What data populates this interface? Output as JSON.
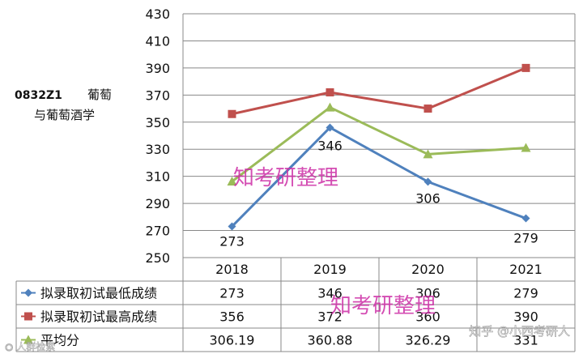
{
  "title": {
    "code": "0832Z1",
    "name_line1": "葡萄",
    "name_line2": "与葡萄酒学"
  },
  "watermarks": {
    "center": "知考研整理",
    "table": "知考研整理",
    "bottom_right": "知乎 @小西考研人",
    "bottom_left": "◉ 人群检索"
  },
  "colors": {
    "min": "#4f81bd",
    "max": "#c0504d",
    "avg": "#9bbb59",
    "watermark": "#cc2ea6",
    "grid": "#888888"
  },
  "chart_data": {
    "type": "line",
    "categories": [
      "2018",
      "2019",
      "2020",
      "2021"
    ],
    "ylim": [
      250,
      430
    ],
    "yticks": [
      "250",
      "270",
      "290",
      "310",
      "330",
      "350",
      "370",
      "390",
      "410",
      "430"
    ],
    "grid": true,
    "legend": "bottom-table",
    "series": [
      {
        "name": "拟录取初试最低成绩",
        "values": [
          273,
          346,
          306,
          279
        ],
        "labels": [
          "273",
          "346",
          "306",
          "279"
        ],
        "color": "#4f81bd",
        "marker": "diamond"
      },
      {
        "name": "拟录取初试最高成绩",
        "values": [
          356,
          372,
          360,
          390
        ],
        "labels": [
          "356",
          "372",
          "360",
          "390"
        ],
        "color": "#c0504d",
        "marker": "square"
      },
      {
        "name": "平均分",
        "values": [
          306.19,
          360.88,
          326.29,
          331
        ],
        "labels": [
          "306.19",
          "360.88",
          "326.29",
          "331"
        ],
        "color": "#9bbb59",
        "marker": "triangle"
      }
    ],
    "point_labels": {
      "series": 0,
      "values": [
        "273",
        "346",
        "306",
        "279"
      ]
    }
  }
}
